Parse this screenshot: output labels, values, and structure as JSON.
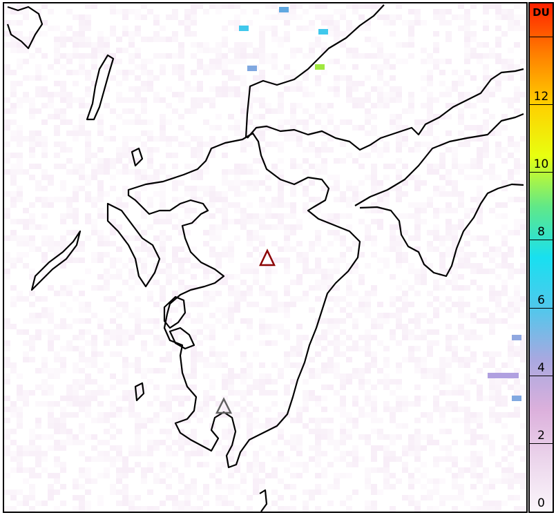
{
  "colorbar": {
    "unit": "DU",
    "ticks": [
      "0",
      "2",
      "4",
      "6",
      "8",
      "10",
      "12"
    ],
    "range": [
      0,
      15
    ],
    "colors": [
      "#fbf6fb",
      "#ecd6ec",
      "#dcb0dc",
      "#a8a8e0",
      "#50c8ec",
      "#18e0f0",
      "#60e888",
      "#e8ff10",
      "#ffd000",
      "#ff8000",
      "#ff2000"
    ]
  },
  "map": {
    "markers": [
      {
        "name": "volcano-marker-aso",
        "color": "#8b0000"
      },
      {
        "name": "volcano-marker-sakurajima",
        "color": "#606060"
      }
    ],
    "coastline_color": "#000000",
    "noise_color": "#d8a0d8"
  }
}
